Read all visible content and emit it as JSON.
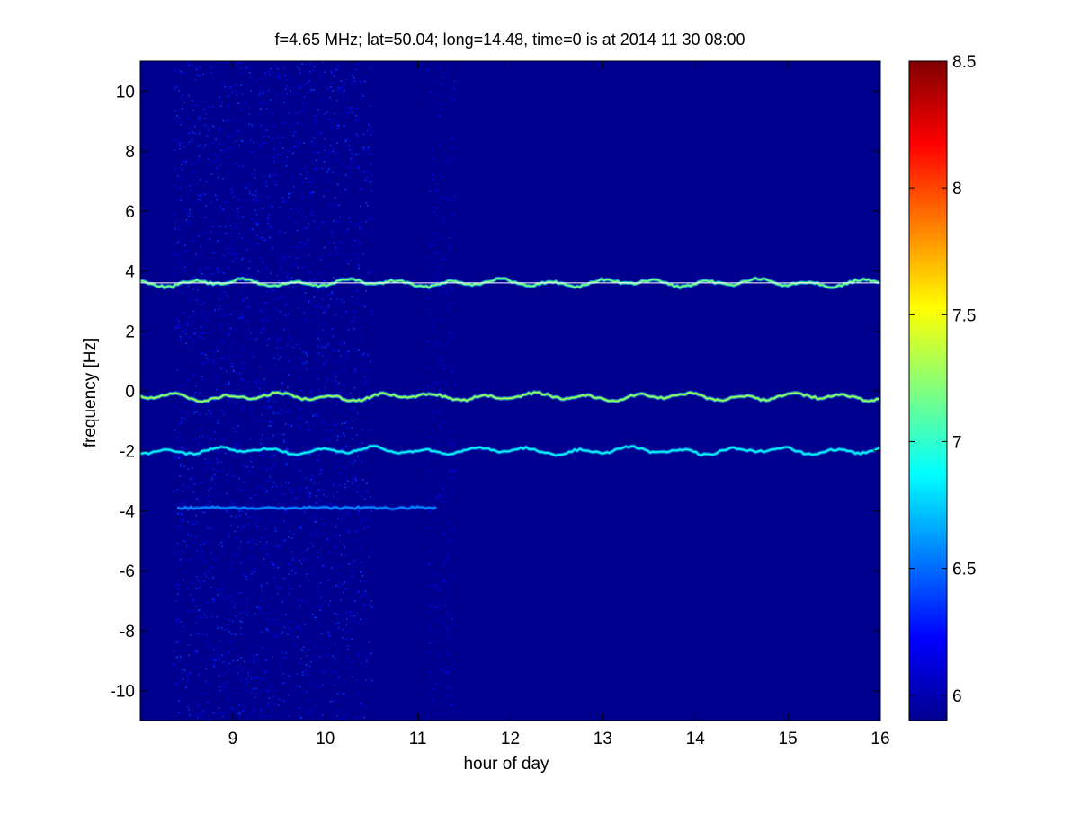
{
  "chart_data": {
    "type": "heatmap",
    "title": "f=4.65 MHz;  lat=50.04; long=14.48, time=0 is at 2014 11 30 08:00",
    "xlabel": "hour of day",
    "ylabel": "frequency [Hz]",
    "xlim": [
      8.0,
      16.0
    ],
    "ylim": [
      -11.0,
      11.0
    ],
    "xticks": [
      "9",
      "10",
      "11",
      "12",
      "13",
      "14",
      "15",
      "16"
    ],
    "yticks": [
      "10",
      "8",
      "6",
      "4",
      "2",
      "0",
      "-2",
      "-4",
      "-6",
      "-8",
      "-10"
    ],
    "colorbar": {
      "range": [
        5.9,
        8.5
      ],
      "ticks": [
        "8.5",
        "8",
        "7.5",
        "7",
        "6.5",
        "6"
      ],
      "colormap": "jet"
    },
    "grid": false,
    "background_color": "#00008f",
    "features": [
      {
        "kind": "trace",
        "center_hz": 3.6,
        "x_range": [
          8.0,
          16.0
        ],
        "intensity": 7.2
      },
      {
        "kind": "reference-line",
        "center_hz": 3.6,
        "x_range": [
          8.0,
          16.0
        ]
      },
      {
        "kind": "trace",
        "center_hz": -0.2,
        "x_range": [
          8.0,
          16.0
        ],
        "intensity": 7.3
      },
      {
        "kind": "trace",
        "center_hz": -2.0,
        "x_range": [
          8.0,
          16.0
        ],
        "intensity": 6.9
      },
      {
        "kind": "trace",
        "center_hz": -3.9,
        "x_range": [
          8.4,
          11.2
        ],
        "intensity": 6.6
      },
      {
        "kind": "noise-band",
        "x_range": [
          8.35,
          10.5
        ],
        "intensity": 6.3
      },
      {
        "kind": "noise-band",
        "x_range": [
          11.1,
          11.4
        ],
        "intensity": 6.2
      }
    ]
  }
}
